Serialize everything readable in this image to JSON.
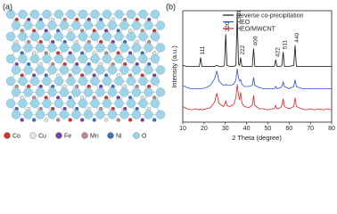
{
  "panel_a": {
    "label": "(a)",
    "legend": [
      {
        "name": "Co",
        "color": "#d9302a"
      },
      {
        "name": "Cu",
        "color": "#e8e4dc"
      },
      {
        "name": "Fe",
        "color": "#7a3fa0"
      },
      {
        "name": "Mn",
        "color": "#b58a86"
      },
      {
        "name": "Ni",
        "color": "#3f6fbf"
      },
      {
        "name": "O",
        "color": "#9fd3e8"
      }
    ]
  },
  "chart_data": {
    "type": "line",
    "panel_label": "(b)",
    "x_label": "2 Theta (degree)",
    "y_label": "Intensity (a.u.)",
    "x": [
      10,
      12,
      14,
      16,
      17.8,
      18.4,
      19,
      21,
      23,
      25,
      26,
      27,
      29,
      29.6,
      30.2,
      30.8,
      32,
      34,
      35,
      35.6,
      36.2,
      36.7,
      37.2,
      37.8,
      39,
      41,
      42.7,
      43.3,
      43.9,
      46,
      48,
      50,
      52,
      53.1,
      53.7,
      54.3,
      56,
      56.6,
      57.2,
      57.8,
      60,
      62.2,
      62.8,
      63.4,
      66,
      68,
      70,
      72,
      74,
      76,
      78,
      80
    ],
    "series": [
      {
        "name": "Reverse co-precipitation",
        "color": "#111111",
        "values": [
          51,
          50,
          50,
          50,
          50,
          58,
          50,
          50,
          50,
          50,
          51,
          50,
          50,
          51,
          79,
          51,
          50,
          50,
          51,
          98,
          52,
          51,
          58,
          50,
          50,
          50,
          50,
          66,
          50,
          50,
          50,
          50,
          50,
          50,
          56,
          50,
          50,
          51,
          63,
          50,
          50,
          51,
          69,
          50,
          50,
          50,
          50,
          50,
          50,
          50,
          50,
          50
        ]
      },
      {
        "name": "HEO",
        "color": "#2b4fd8",
        "values": [
          33,
          31,
          30,
          30,
          30,
          30,
          30,
          31,
          33,
          39,
          46,
          37,
          33,
          33,
          34,
          33,
          33,
          34,
          38,
          48,
          40,
          37,
          38,
          34,
          32,
          32,
          33,
          40,
          33,
          31,
          30,
          30,
          30,
          30,
          32,
          30,
          31,
          32,
          36,
          32,
          30,
          32,
          38,
          32,
          30,
          30,
          30,
          30,
          30,
          30,
          30,
          30
        ]
      },
      {
        "name": "HEO/MWCNT",
        "color": "#e02020",
        "values": [
          14,
          12,
          11,
          12,
          11,
          12,
          11,
          12,
          13,
          18,
          26,
          17,
          14,
          15,
          19,
          15,
          14,
          16,
          22,
          34,
          24,
          20,
          27,
          17,
          14,
          13,
          15,
          24,
          15,
          12,
          12,
          11,
          12,
          12,
          15,
          12,
          13,
          15,
          21,
          14,
          12,
          14,
          22,
          14,
          12,
          11,
          12,
          11,
          12,
          11,
          12,
          11
        ]
      }
    ],
    "annotations": [
      {
        "text": "111",
        "x": 18.4
      },
      {
        "text": "220",
        "x": 30.2
      },
      {
        "text": "331",
        "x": 35.6
      },
      {
        "text": "222",
        "x": 37.2
      },
      {
        "text": "400",
        "x": 43.3
      },
      {
        "text": "422",
        "x": 53.7
      },
      {
        "text": "511",
        "x": 57.2
      },
      {
        "text": "440",
        "x": 62.8
      }
    ],
    "xlim": [
      10,
      80
    ],
    "xticks": [
      10,
      20,
      30,
      40,
      50,
      60,
      70,
      80
    ],
    "ylim": [
      0,
      100
    ],
    "legend": "upper right"
  }
}
